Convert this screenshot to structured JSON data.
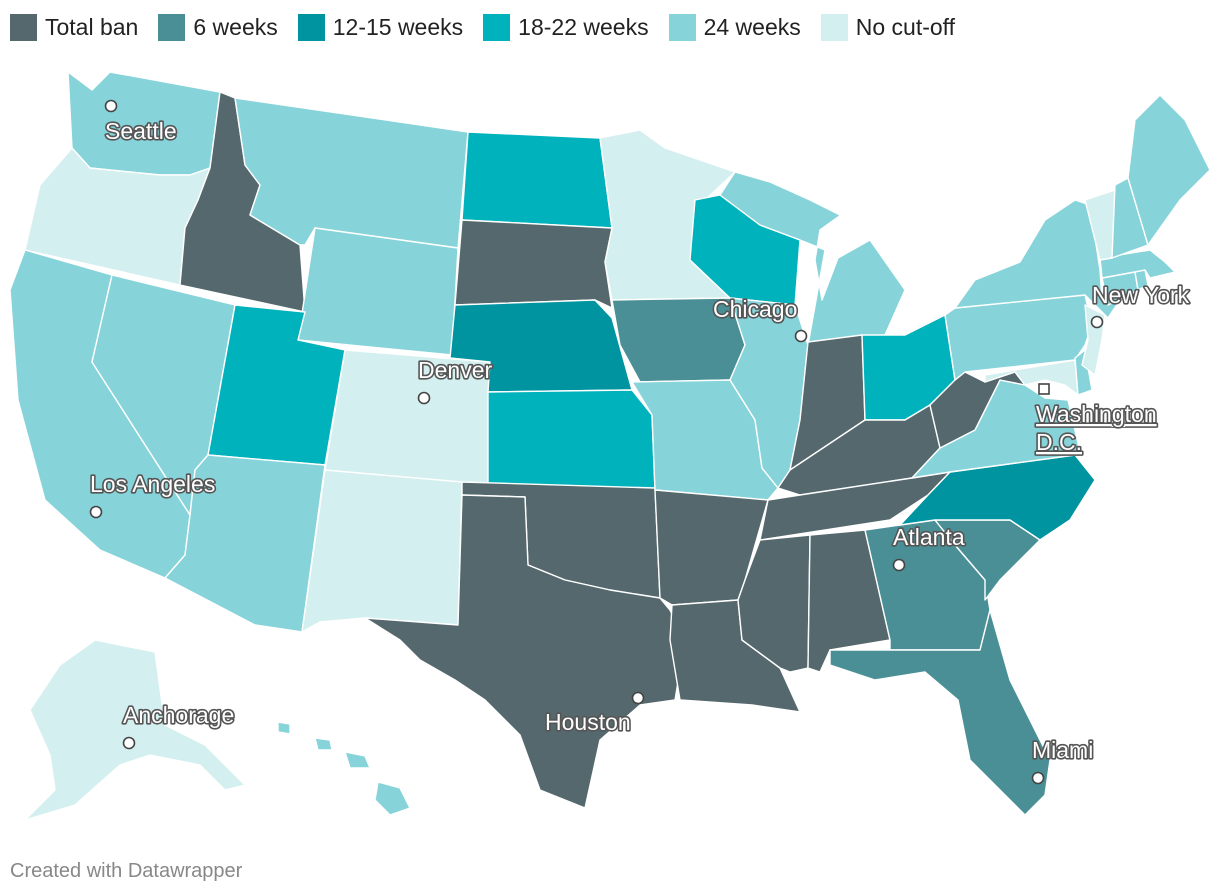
{
  "colors": {
    "total_ban": "#55686d",
    "w6": "#4a8f96",
    "w12_15": "#0094a0",
    "w18_22": "#00b2bc",
    "w24": "#86d3da",
    "no_cutoff": "#d4efef"
  },
  "legend": [
    {
      "key": "total_ban",
      "label": "Total ban"
    },
    {
      "key": "w6",
      "label": "6 weeks"
    },
    {
      "key": "w12_15",
      "label": "12-15 weeks"
    },
    {
      "key": "w18_22",
      "label": "18-22 weeks"
    },
    {
      "key": "w24",
      "label": "24 weeks"
    },
    {
      "key": "no_cutoff",
      "label": "No cut-off"
    }
  ],
  "states": {
    "WA": "w24",
    "OR": "no_cutoff",
    "CA": "w24",
    "NV": "w24",
    "ID": "total_ban",
    "MT": "w24",
    "WY": "w24",
    "UT": "w18_22",
    "AZ": "w24",
    "CO": "no_cutoff",
    "NM": "no_cutoff",
    "ND": "w18_22",
    "SD": "total_ban",
    "NE": "w12_15",
    "KS": "w18_22",
    "OK": "total_ban",
    "TX": "total_ban",
    "MN": "no_cutoff",
    "IA": "w6",
    "MO": "w24",
    "AR": "total_ban",
    "LA": "total_ban",
    "WI": "w18_22",
    "IL": "w24",
    "MI": "w24",
    "IN": "total_ban",
    "OH": "w18_22",
    "KY": "total_ban",
    "TN": "total_ban",
    "MS": "total_ban",
    "AL": "total_ban",
    "GA": "w6",
    "FL": "w6",
    "SC": "w6",
    "NC": "w12_15",
    "VA": "w24",
    "WV": "total_ban",
    "MD": "no_cutoff",
    "DE": "w24",
    "PA": "w24",
    "NJ": "no_cutoff",
    "NY": "w24",
    "CT": "w24",
    "RI": "w24",
    "MA": "w24",
    "VT": "no_cutoff",
    "NH": "w24",
    "ME": "w24",
    "AK": "no_cutoff",
    "HI": "w24"
  },
  "cities": {
    "seattle": "Seattle",
    "los_angeles": "Los Angeles",
    "denver": "Denver",
    "chicago": "Chicago",
    "new_york": "New York",
    "washington_dc": "Washington D.C.",
    "atlanta": "Atlanta",
    "houston": "Houston",
    "miami": "Miami",
    "anchorage": "Anchorage"
  },
  "credit": "Created with Datawrapper"
}
